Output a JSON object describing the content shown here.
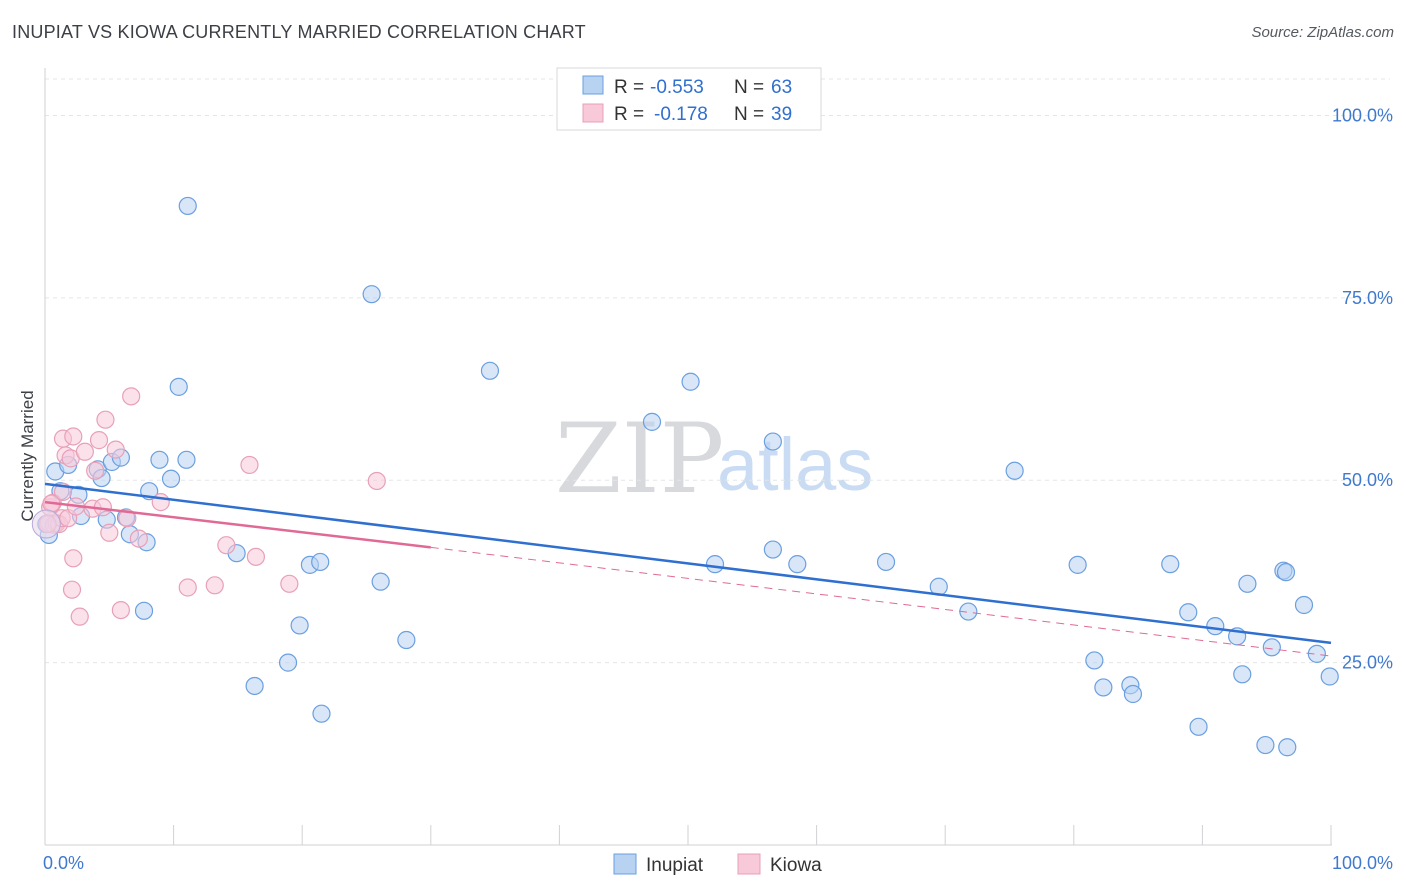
{
  "title": "INUPIAT VS KIOWA CURRENTLY MARRIED CORRELATION CHART",
  "source": "Source: ZipAtlas.com",
  "watermark": {
    "zip": "ZIP",
    "atlas": "atlas"
  },
  "chart_data": {
    "type": "scatter",
    "xlabel": "",
    "ylabel": "Currently Married",
    "xlim": [
      0,
      100
    ],
    "ylim": [
      0,
      105
    ],
    "x_tick_labels": [
      "0.0%",
      "100.0%"
    ],
    "y_ticks": [
      25,
      50,
      75,
      100
    ],
    "y_tick_labels": [
      "25.0%",
      "50.0%",
      "75.0%",
      "100.0%"
    ],
    "grid": true,
    "legend_position": "bottom-center",
    "stats": [
      {
        "r_label": "R =",
        "r": "-0.553",
        "n_label": "N =",
        "n": "63"
      },
      {
        "r_label": "R =",
        "r": "-0.178",
        "n_label": "N =",
        "n": "39"
      }
    ],
    "series": [
      {
        "name": "Inupiat",
        "color": "#6a9fe0",
        "fill": "#b8d2f2",
        "trend": {
          "x0": 0,
          "y0": 49.5,
          "x1": 100,
          "y1": 27.7,
          "dashed_from": null
        },
        "points": [
          [
            0.3,
            42.5
          ],
          [
            0.8,
            51.2
          ],
          [
            1.2,
            48.5
          ],
          [
            1.8,
            52.1
          ],
          [
            2.6,
            48
          ],
          [
            2.8,
            45.1
          ],
          [
            4.1,
            51.5
          ],
          [
            4.4,
            50.3
          ],
          [
            4.8,
            44.6
          ],
          [
            5.2,
            52.5
          ],
          [
            5.9,
            53.1
          ],
          [
            6.3,
            44.9
          ],
          [
            6.6,
            42.6
          ],
          [
            7.7,
            32.1
          ],
          [
            7.9,
            41.5
          ],
          [
            8.1,
            48.5
          ],
          [
            8.9,
            52.8
          ],
          [
            9.8,
            50.2
          ],
          [
            10.4,
            62.8
          ],
          [
            11,
            52.8
          ],
          [
            11.1,
            87.6
          ],
          [
            14.9,
            40
          ],
          [
            16.3,
            21.8
          ],
          [
            18.9,
            25
          ],
          [
            19.8,
            30.1
          ],
          [
            20.6,
            38.4
          ],
          [
            21.4,
            38.8
          ],
          [
            21.5,
            18
          ],
          [
            25.4,
            75.5
          ],
          [
            26.1,
            36.1
          ],
          [
            28.1,
            28.1
          ],
          [
            34.6,
            65
          ],
          [
            47.2,
            58
          ],
          [
            50.2,
            63.5
          ],
          [
            52.1,
            38.5
          ],
          [
            56.6,
            40.5
          ],
          [
            56.6,
            55.3
          ],
          [
            58.5,
            38.5
          ],
          [
            65.4,
            38.8
          ],
          [
            69.5,
            35.4
          ],
          [
            71.8,
            32
          ],
          [
            75.4,
            51.3
          ],
          [
            80.3,
            38.4
          ],
          [
            81.6,
            25.3
          ],
          [
            82.3,
            21.6
          ],
          [
            84.4,
            21.9
          ],
          [
            84.6,
            20.7
          ],
          [
            87.5,
            38.5
          ],
          [
            88.9,
            31.9
          ],
          [
            89.7,
            16.2
          ],
          [
            91,
            30
          ],
          [
            92.7,
            28.6
          ],
          [
            93.1,
            23.4
          ],
          [
            93.5,
            35.8
          ],
          [
            94.9,
            13.7
          ],
          [
            95.4,
            27.1
          ],
          [
            96.3,
            37.6
          ],
          [
            96.5,
            37.4
          ],
          [
            96.6,
            13.4
          ],
          [
            97.9,
            32.9
          ],
          [
            98.9,
            26.2
          ],
          [
            99.9,
            23.1
          ],
          [
            0.1,
            44
          ]
        ]
      },
      {
        "name": "Kiowa",
        "color": "#e8a0b8",
        "fill": "#f8c9d8",
        "trend": {
          "x0": 0,
          "y0": 47,
          "x1": 30,
          "y1": 40.8,
          "dashed_from": 30,
          "x_end": 100,
          "y_end": 25.9
        },
        "points": [
          [
            0.3,
            44.2
          ],
          [
            0.4,
            46.3
          ],
          [
            0.6,
            46.9
          ],
          [
            0.7,
            43.9
          ],
          [
            0.9,
            44.1
          ],
          [
            1.1,
            44
          ],
          [
            1.3,
            44.8
          ],
          [
            1.4,
            55.7
          ],
          [
            1.4,
            48.4
          ],
          [
            1.6,
            53.4
          ],
          [
            1.8,
            44.8
          ],
          [
            2,
            53
          ],
          [
            2.1,
            35
          ],
          [
            2.2,
            39.3
          ],
          [
            2.2,
            56
          ],
          [
            2.4,
            46.4
          ],
          [
            2.7,
            31.3
          ],
          [
            3.1,
            53.9
          ],
          [
            3.7,
            46.1
          ],
          [
            3.9,
            51.3
          ],
          [
            4.2,
            55.5
          ],
          [
            4.5,
            46.3
          ],
          [
            4.7,
            58.3
          ],
          [
            5,
            42.8
          ],
          [
            5.5,
            54.2
          ],
          [
            5.9,
            32.2
          ],
          [
            6.4,
            44.8
          ],
          [
            6.7,
            61.5
          ],
          [
            7.3,
            42
          ],
          [
            9,
            47
          ],
          [
            11.1,
            35.3
          ],
          [
            13.2,
            35.6
          ],
          [
            14.1,
            41.1
          ],
          [
            15.9,
            52.1
          ],
          [
            16.4,
            39.5
          ],
          [
            19,
            35.8
          ],
          [
            25.8,
            49.9
          ],
          [
            0.2,
            44
          ],
          [
            0.5,
            46.8
          ]
        ]
      }
    ]
  }
}
